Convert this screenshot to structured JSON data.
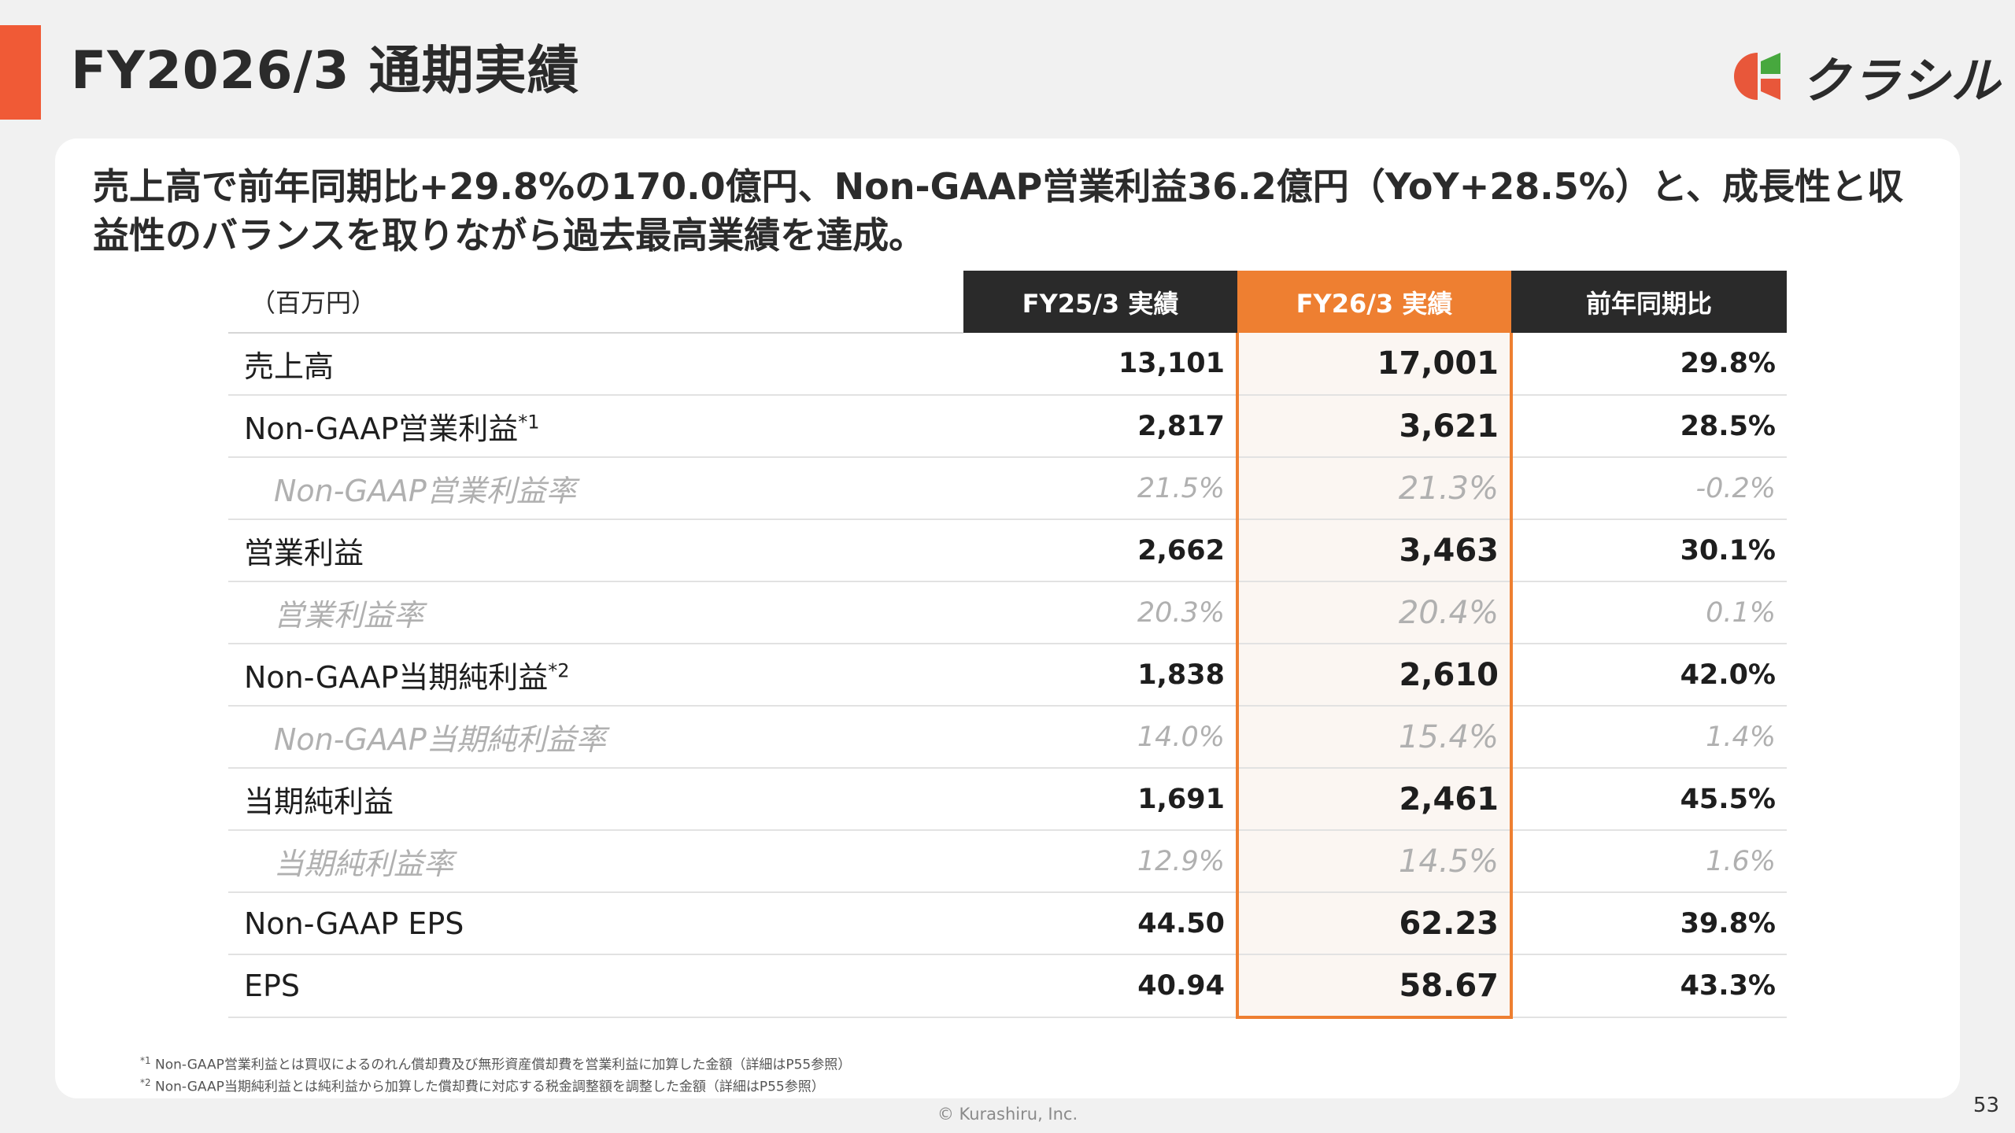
{
  "header": {
    "title": "FY2026/3 通期実績",
    "brand_name": "クラシル",
    "accent_color": "#f05a36",
    "logo_icon": "kurashiru-logo-icon"
  },
  "lead_text": "売上高で前年同期比+29.8%の170.0億円、Non-GAAP営業利益36.2億円（YoY+28.5%）と、成長性と収益性のバランスを取りながら過去最高業績を達成。",
  "table": {
    "unit": "（百万円）",
    "columns": [
      "FY25/3 実績",
      "FY26/3 実績",
      "前年同期比"
    ],
    "highlight_color": "#ee7f31",
    "rows": [
      {
        "label": "売上高",
        "mark": "",
        "fy25": "13,101",
        "fy26": "17,001",
        "yoy": "29.8%",
        "sub": false
      },
      {
        "label": "Non-GAAP営業利益",
        "mark": "*1",
        "fy25": "2,817",
        "fy26": "3,621",
        "yoy": "28.5%",
        "sub": false
      },
      {
        "label": "Non-GAAP営業利益率",
        "mark": "",
        "fy25": "21.5%",
        "fy26": "21.3%",
        "yoy": "-0.2%",
        "sub": true
      },
      {
        "label": "営業利益",
        "mark": "",
        "fy25": "2,662",
        "fy26": "3,463",
        "yoy": "30.1%",
        "sub": false
      },
      {
        "label": "営業利益率",
        "mark": "",
        "fy25": "20.3%",
        "fy26": "20.4%",
        "yoy": "0.1%",
        "sub": true
      },
      {
        "label": "Non-GAAP当期純利益",
        "mark": "*2",
        "fy25": "1,838",
        "fy26": "2,610",
        "yoy": "42.0%",
        "sub": false
      },
      {
        "label": "Non-GAAP当期純利益率",
        "mark": "",
        "fy25": "14.0%",
        "fy26": "15.4%",
        "yoy": "1.4%",
        "sub": true
      },
      {
        "label": "当期純利益",
        "mark": "",
        "fy25": "1,691",
        "fy26": "2,461",
        "yoy": "45.5%",
        "sub": false
      },
      {
        "label": "当期純利益率",
        "mark": "",
        "fy25": "12.9%",
        "fy26": "14.5%",
        "yoy": "1.6%",
        "sub": true
      },
      {
        "label": "Non-GAAP EPS",
        "mark": "",
        "fy25": "44.50",
        "fy26": "62.23",
        "yoy": "39.8%",
        "sub": false
      },
      {
        "label": "EPS",
        "mark": "",
        "fy25": "40.94",
        "fy26": "58.67",
        "yoy": "43.3%",
        "sub": false
      }
    ]
  },
  "footnotes": [
    {
      "mark": "*1",
      "text": " Non-GAAP営業利益とは買収によるのれん償却費及び無形資産償却費を営業利益に加算した金額（詳細はP55参照）"
    },
    {
      "mark": "*2",
      "text": " Non-GAAP当期純利益とは純利益から加算した償却費に対応する税金調整額を調整した金額（詳細はP55参照）"
    }
  ],
  "copyright": "© Kurashiru, Inc.",
  "page_number": "53"
}
